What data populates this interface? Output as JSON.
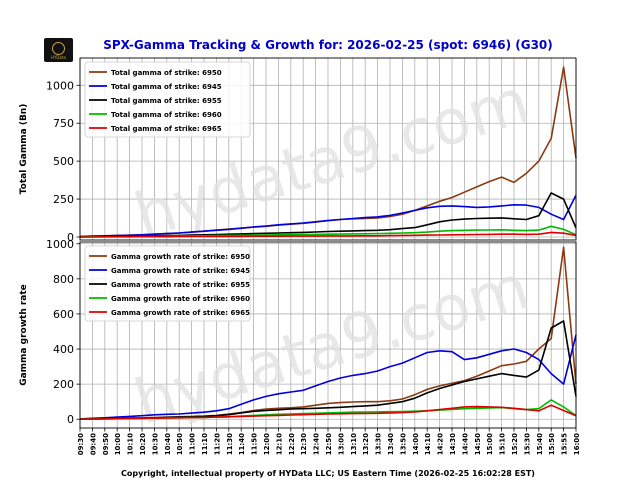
{
  "title": "SPX-Gamma Tracking & Growth for: 2026-02-25 (spot: 6946) (G30)",
  "footer": "Copyright, intellectual property of HYData LLC; US Eastern Time (2026-02-25 16:02:28 EST)",
  "watermark": "hydata9.com",
  "logo_text": "HYData",
  "colors": {
    "s6950": "#8B3A0F",
    "s6945": "#0000DD",
    "s6955": "#000000",
    "s6960": "#00BB00",
    "s6965": "#DD0000",
    "title": "#0000CC"
  },
  "chart_data": [
    {
      "type": "line",
      "ylabel": "Total Gamma (Bn)",
      "ylim": [
        -20,
        1180
      ],
      "yticks": [
        0,
        250,
        500,
        750,
        1000
      ],
      "legend_placement": "top-left",
      "grid": true,
      "x": [
        "09:30",
        "09:40",
        "09:50",
        "10:00",
        "10:10",
        "10:20",
        "10:30",
        "10:40",
        "10:50",
        "11:00",
        "11:10",
        "11:20",
        "11:30",
        "11:40",
        "11:50",
        "12:00",
        "12:10",
        "12:20",
        "12:30",
        "12:40",
        "12:50",
        "13:00",
        "13:10",
        "13:20",
        "13:30",
        "13:40",
        "13:50",
        "14:00",
        "14:10",
        "14:20",
        "14:30",
        "14:40",
        "14:50",
        "15:00",
        "15:10",
        "15:20",
        "15:30",
        "15:40",
        "15:50",
        "15:55",
        "16:00"
      ],
      "series": [
        {
          "name": "Total gamma of strike: 6950",
          "color": "#8B3A0F",
          "values": [
            3,
            6,
            8,
            10,
            12,
            14,
            18,
            22,
            26,
            32,
            38,
            45,
            52,
            58,
            65,
            70,
            78,
            84,
            90,
            98,
            108,
            115,
            120,
            122,
            125,
            135,
            150,
            175,
            205,
            235,
            260,
            295,
            330,
            365,
            395,
            360,
            420,
            500,
            650,
            1120,
            520
          ]
        },
        {
          "name": "Total gamma of strike: 6945",
          "color": "#0000DD",
          "values": [
            3,
            5,
            7,
            9,
            11,
            14,
            18,
            22,
            26,
            32,
            38,
            44,
            50,
            58,
            66,
            72,
            80,
            86,
            92,
            100,
            108,
            115,
            122,
            128,
            132,
            142,
            158,
            175,
            192,
            202,
            205,
            200,
            195,
            198,
            205,
            212,
            210,
            195,
            150,
            115,
            275
          ]
        },
        {
          "name": "Total gamma of strike: 6955",
          "color": "#000000",
          "values": [
            1,
            2,
            3,
            4,
            5,
            6,
            8,
            9,
            10,
            12,
            14,
            16,
            18,
            20,
            22,
            24,
            26,
            28,
            30,
            33,
            36,
            38,
            40,
            42,
            44,
            48,
            55,
            62,
            80,
            100,
            112,
            118,
            122,
            124,
            126,
            120,
            115,
            140,
            290,
            250,
            60
          ]
        },
        {
          "name": "Total gamma of strike: 6960",
          "color": "#00BB00",
          "values": [
            0,
            1,
            1,
            2,
            2,
            3,
            4,
            5,
            6,
            7,
            8,
            9,
            10,
            11,
            12,
            13,
            14,
            15,
            16,
            17,
            18,
            19,
            20,
            21,
            22,
            24,
            26,
            28,
            32,
            38,
            42,
            44,
            45,
            46,
            47,
            44,
            42,
            45,
            70,
            50,
            15
          ]
        },
        {
          "name": "Total gamma of strike: 6965",
          "color": "#DD0000",
          "values": [
            0,
            0,
            1,
            1,
            1,
            2,
            2,
            2,
            3,
            3,
            3,
            4,
            4,
            4,
            5,
            5,
            5,
            6,
            6,
            6,
            7,
            7,
            7,
            8,
            8,
            9,
            10,
            11,
            12,
            13,
            14,
            15,
            16,
            17,
            18,
            18,
            17,
            18,
            30,
            25,
            10
          ]
        }
      ]
    },
    {
      "type": "line",
      "ylabel": "Gamma growth rate",
      "ylim": [
        -50,
        1010
      ],
      "yticks": [
        0,
        200,
        400,
        600,
        800,
        1000
      ],
      "legend_placement": "top-left",
      "grid": true,
      "x": [
        "09:30",
        "09:40",
        "09:50",
        "10:00",
        "10:10",
        "10:20",
        "10:30",
        "10:40",
        "10:50",
        "11:00",
        "11:10",
        "11:20",
        "11:30",
        "11:40",
        "11:50",
        "12:00",
        "12:10",
        "12:20",
        "12:30",
        "12:40",
        "12:50",
        "13:00",
        "13:10",
        "13:20",
        "13:30",
        "13:40",
        "13:50",
        "14:00",
        "14:10",
        "14:20",
        "14:30",
        "14:40",
        "14:50",
        "15:00",
        "15:10",
        "15:20",
        "15:30",
        "15:40",
        "15:50",
        "15:55",
        "16:00"
      ],
      "series": [
        {
          "name": "Gamma growth rate of strike: 6950",
          "color": "#8B3A0F",
          "values": [
            2,
            4,
            6,
            8,
            8,
            8,
            10,
            12,
            14,
            16,
            18,
            22,
            30,
            38,
            50,
            58,
            62,
            65,
            70,
            80,
            90,
            95,
            98,
            100,
            100,
            105,
            115,
            140,
            170,
            190,
            205,
            220,
            245,
            275,
            305,
            315,
            330,
            400,
            460,
            980,
            200
          ]
        },
        {
          "name": "Gamma growth rate of strike: 6945",
          "color": "#0000DD",
          "values": [
            2,
            5,
            8,
            12,
            16,
            20,
            25,
            28,
            30,
            35,
            40,
            48,
            60,
            85,
            110,
            130,
            145,
            155,
            165,
            190,
            215,
            235,
            250,
            260,
            275,
            300,
            320,
            350,
            380,
            390,
            385,
            340,
            350,
            370,
            390,
            400,
            380,
            340,
            260,
            200,
            480
          ]
        },
        {
          "name": "Gamma growth rate of strike: 6955",
          "color": "#000000",
          "values": [
            1,
            2,
            3,
            4,
            5,
            6,
            8,
            10,
            12,
            14,
            16,
            20,
            26,
            36,
            45,
            50,
            54,
            58,
            60,
            62,
            65,
            68,
            72,
            76,
            80,
            90,
            100,
            120,
            150,
            175,
            195,
            215,
            230,
            245,
            260,
            250,
            240,
            280,
            520,
            560,
            130
          ]
        },
        {
          "name": "Gamma growth rate of strike: 6960",
          "color": "#00BB00",
          "values": [
            0,
            1,
            2,
            3,
            4,
            5,
            6,
            7,
            8,
            9,
            10,
            12,
            14,
            18,
            22,
            25,
            28,
            30,
            32,
            34,
            36,
            38,
            40,
            41,
            42,
            43,
            44,
            46,
            48,
            52,
            56,
            60,
            62,
            64,
            66,
            60,
            55,
            60,
            110,
            70,
            20
          ]
        },
        {
          "name": "Gamma growth rate of strike: 6965",
          "color": "#DD0000",
          "values": [
            0,
            1,
            2,
            3,
            4,
            5,
            6,
            7,
            8,
            9,
            10,
            12,
            14,
            16,
            18,
            20,
            22,
            24,
            26,
            28,
            30,
            31,
            32,
            33,
            34,
            36,
            38,
            42,
            48,
            55,
            62,
            70,
            72,
            70,
            68,
            62,
            55,
            48,
            80,
            50,
            20
          ]
        }
      ]
    }
  ]
}
